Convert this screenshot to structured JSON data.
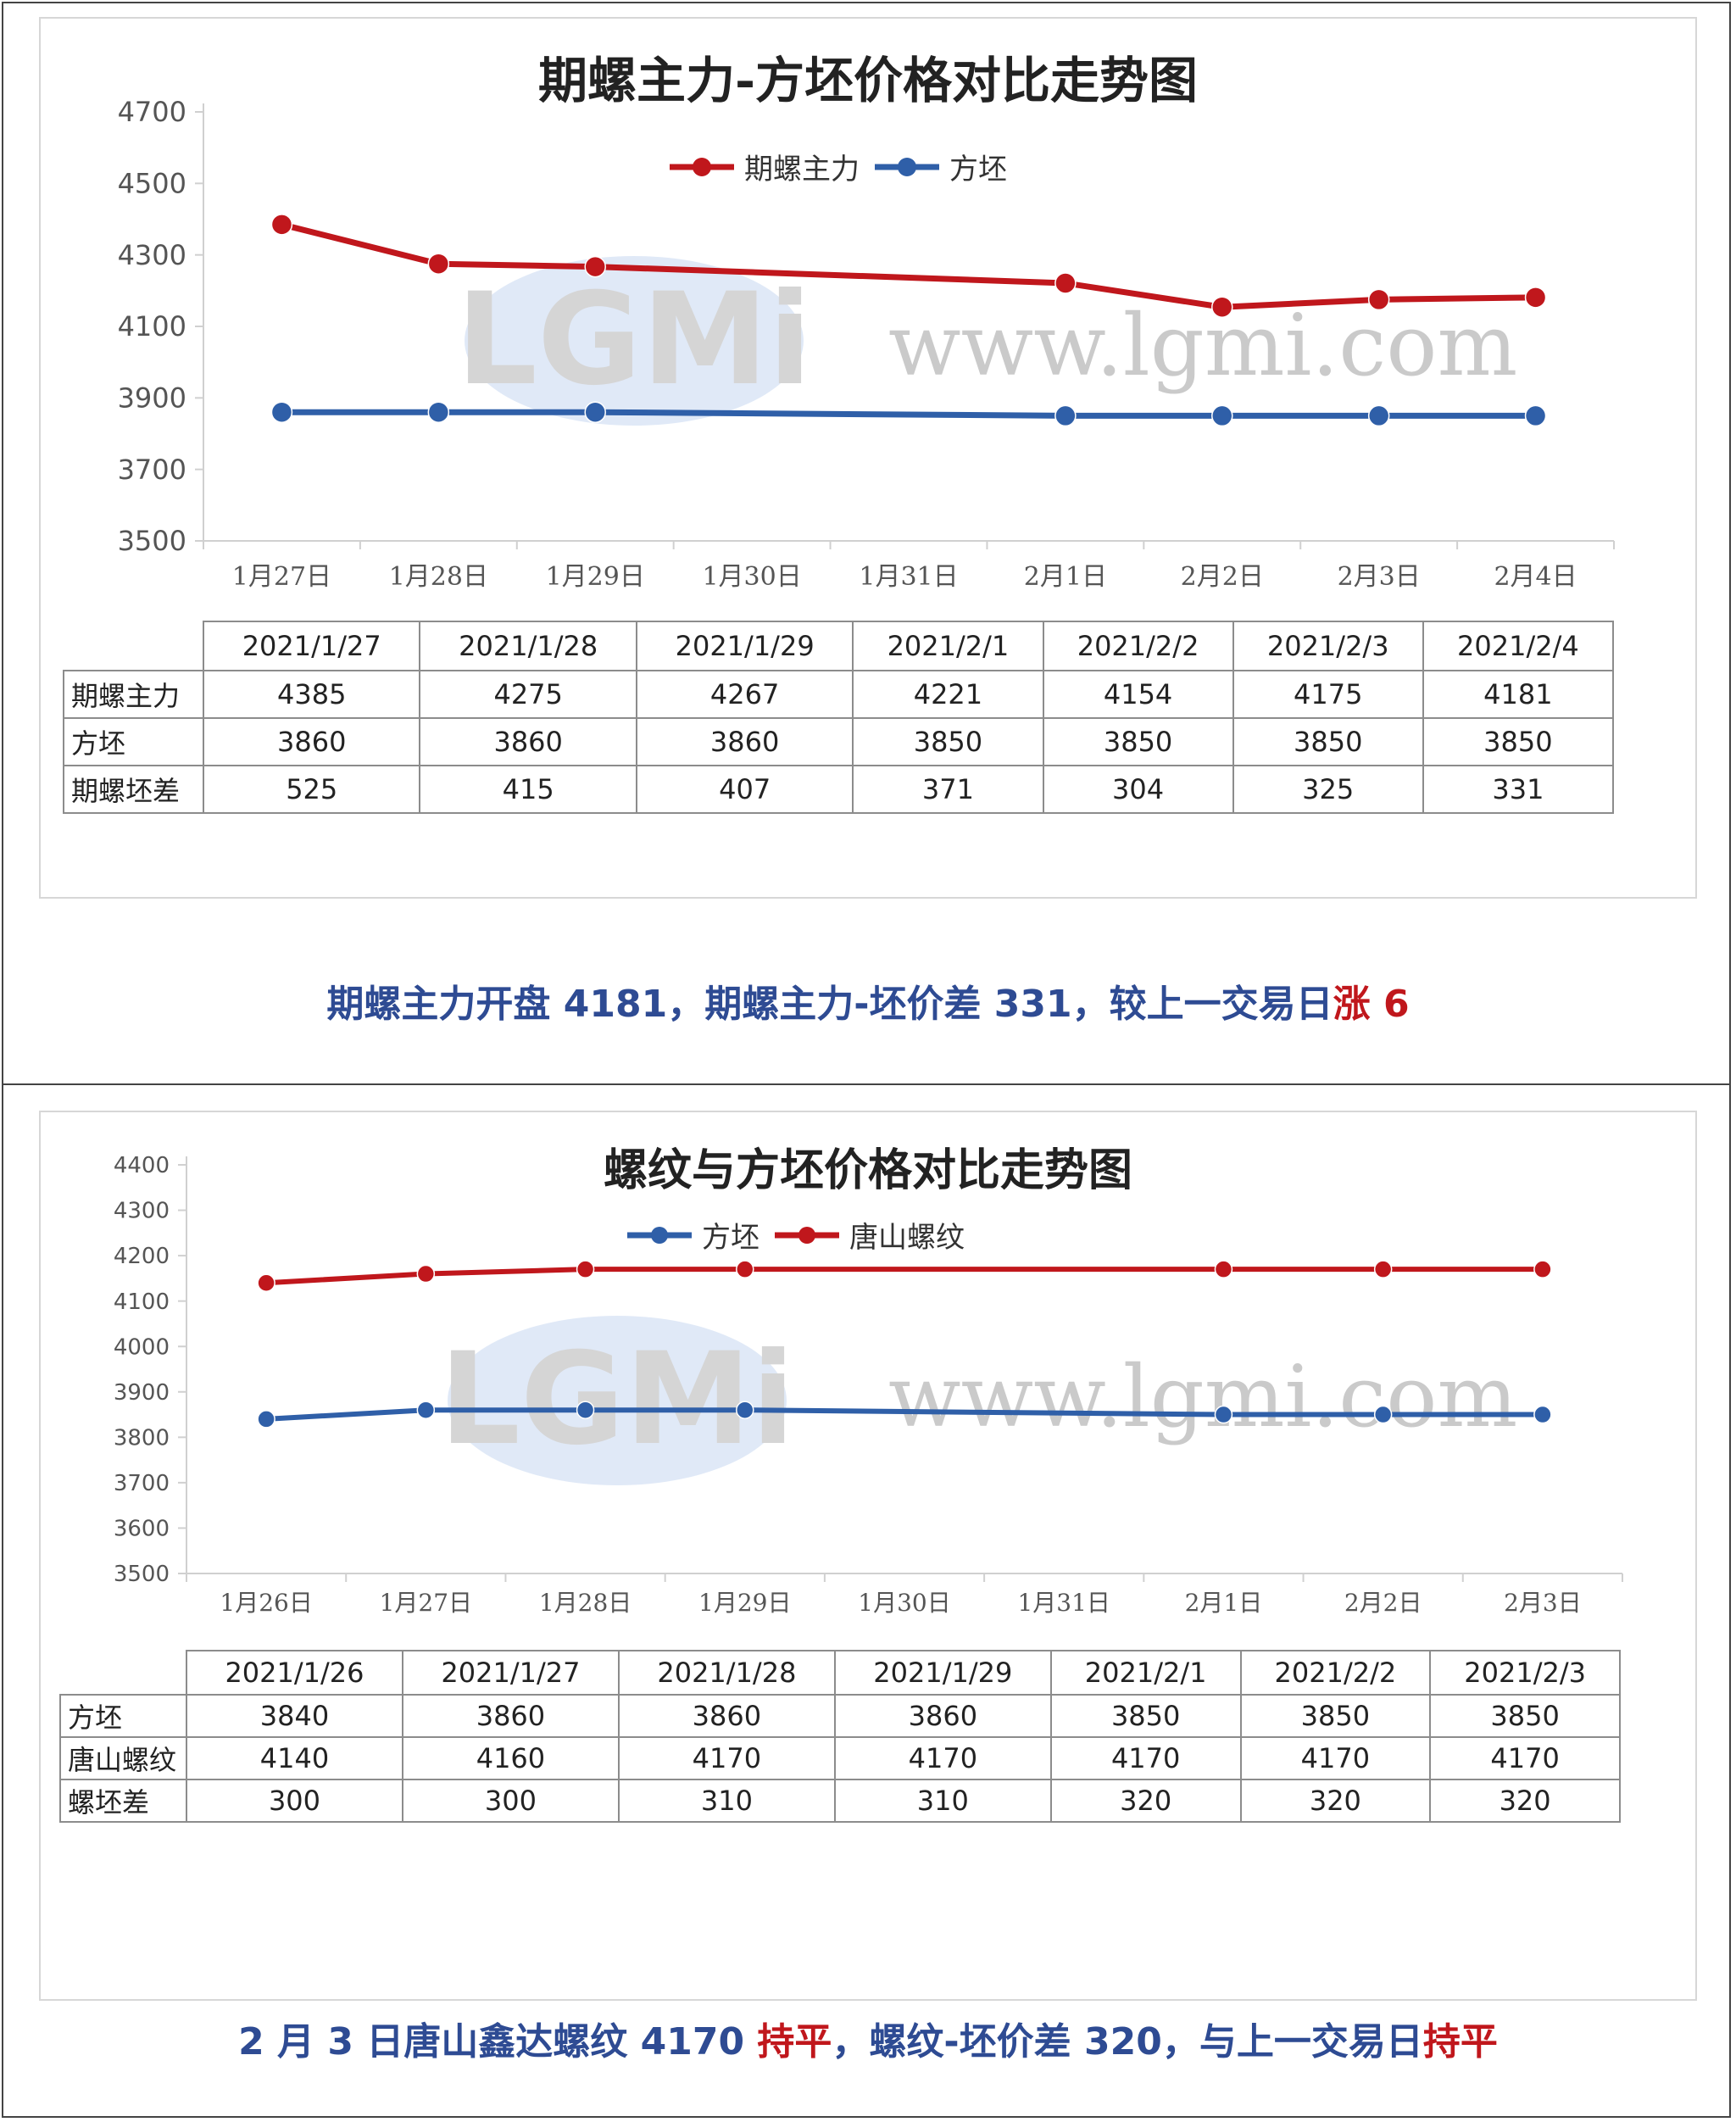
{
  "colors": {
    "red_series": "#c0171c",
    "blue_series": "#2f5fa8",
    "caption_blue": "#2e4b93",
    "caption_red": "#c0171c"
  },
  "watermark": {
    "logo_text": "LGMi",
    "url_text": "www.lgmi.com"
  },
  "chart_data": [
    {
      "type": "line",
      "title": "期螺主力-方坯价格对比走势图",
      "categories": [
        "1月27日",
        "1月28日",
        "1月29日",
        "1月30日",
        "1月31日",
        "2月1日",
        "2月2日",
        "2月3日",
        "2月4日"
      ],
      "y_ticks": [
        "4700",
        "4500",
        "4300",
        "4100",
        "3900",
        "3700",
        "3500"
      ],
      "ylim": [
        3500,
        4700
      ],
      "legend_position": "top",
      "series": [
        {
          "name": "期螺主力",
          "color": "#c0171c",
          "points": [
            {
              "x": "1月27日",
              "y": 4385
            },
            {
              "x": "1月28日",
              "y": 4275
            },
            {
              "x": "1月29日",
              "y": 4267
            },
            {
              "x": "2月1日",
              "y": 4221
            },
            {
              "x": "2月2日",
              "y": 4154
            },
            {
              "x": "2月3日",
              "y": 4175
            },
            {
              "x": "2月4日",
              "y": 4181
            }
          ]
        },
        {
          "name": "方坯",
          "color": "#2f5fa8",
          "points": [
            {
              "x": "1月27日",
              "y": 3860
            },
            {
              "x": "1月28日",
              "y": 3860
            },
            {
              "x": "1月29日",
              "y": 3860
            },
            {
              "x": "2月1日",
              "y": 3850
            },
            {
              "x": "2月2日",
              "y": 3850
            },
            {
              "x": "2月3日",
              "y": 3850
            },
            {
              "x": "2月4日",
              "y": 3850
            }
          ]
        }
      ],
      "table": {
        "columns": [
          "2021/1/27",
          "2021/1/28",
          "2021/1/29",
          "2021/2/1",
          "2021/2/2",
          "2021/2/3",
          "2021/2/4"
        ],
        "rows": [
          {
            "label": "期螺主力",
            "values": [
              "4385",
              "4275",
              "4267",
              "4221",
              "4154",
              "4175",
              "4181"
            ]
          },
          {
            "label": "方坯",
            "values": [
              "3860",
              "3860",
              "3860",
              "3850",
              "3850",
              "3850",
              "3850"
            ]
          },
          {
            "label": "期螺坯差",
            "values": [
              "525",
              "415",
              "407",
              "371",
              "304",
              "325",
              "331"
            ]
          }
        ]
      }
    },
    {
      "type": "line",
      "title": "螺纹与方坯价格对比走势图",
      "categories": [
        "1月26日",
        "1月27日",
        "1月28日",
        "1月29日",
        "1月30日",
        "1月31日",
        "2月1日",
        "2月2日",
        "2月3日"
      ],
      "y_ticks": [
        "4400",
        "4300",
        "4200",
        "4100",
        "4000",
        "3900",
        "3800",
        "3700",
        "3600",
        "3500"
      ],
      "ylim": [
        3500,
        4400
      ],
      "legend_position": "top",
      "series": [
        {
          "name": "方坯",
          "color": "#2f5fa8",
          "points": [
            {
              "x": "1月26日",
              "y": 3840
            },
            {
              "x": "1月27日",
              "y": 3860
            },
            {
              "x": "1月28日",
              "y": 3860
            },
            {
              "x": "1月29日",
              "y": 3860
            },
            {
              "x": "2月1日",
              "y": 3850
            },
            {
              "x": "2月2日",
              "y": 3850
            },
            {
              "x": "2月3日",
              "y": 3850
            }
          ]
        },
        {
          "name": "唐山螺纹",
          "color": "#c0171c",
          "points": [
            {
              "x": "1月26日",
              "y": 4140
            },
            {
              "x": "1月27日",
              "y": 4160
            },
            {
              "x": "1月28日",
              "y": 4170
            },
            {
              "x": "1月29日",
              "y": 4170
            },
            {
              "x": "2月1日",
              "y": 4170
            },
            {
              "x": "2月2日",
              "y": 4170
            },
            {
              "x": "2月3日",
              "y": 4170
            }
          ]
        }
      ],
      "table": {
        "columns": [
          "2021/1/26",
          "2021/1/27",
          "2021/1/28",
          "2021/1/29",
          "2021/2/1",
          "2021/2/2",
          "2021/2/3"
        ],
        "rows": [
          {
            "label": "方坯",
            "values": [
              "3840",
              "3860",
              "3860",
              "3860",
              "3850",
              "3850",
              "3850"
            ]
          },
          {
            "label": "唐山螺纹",
            "values": [
              "4140",
              "4160",
              "4170",
              "4170",
              "4170",
              "4170",
              "4170"
            ]
          },
          {
            "label": "螺坯差",
            "values": [
              "300",
              "300",
              "310",
              "310",
              "320",
              "320",
              "320"
            ]
          }
        ]
      }
    }
  ],
  "captions": {
    "top": {
      "part1": "期螺主力开盘 4181，期螺主力-坯价差 331，较上一交易日",
      "part2": "涨 6"
    },
    "bottom": {
      "part1": "2 月 3 日唐山鑫达螺纹 4170 ",
      "part2": "持平",
      "part3": "，螺纹-坯价差 320，与上一交易日",
      "part4": "持平"
    }
  }
}
